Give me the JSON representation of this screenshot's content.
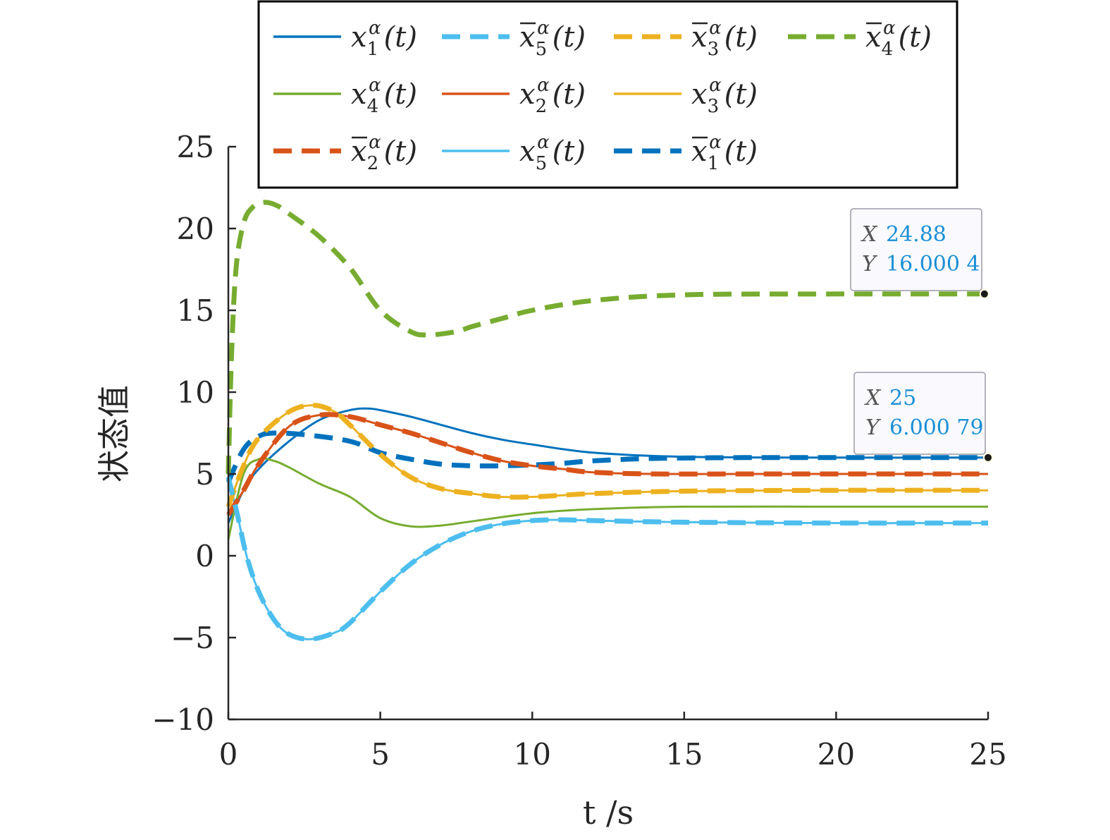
{
  "chart_data": {
    "type": "line",
    "title": "",
    "xlabel": "t /s",
    "ylabel": "状态值",
    "xlim": [
      0,
      25
    ],
    "ylim": [
      -10,
      25
    ],
    "xticks": [
      0,
      5,
      10,
      15,
      20,
      25
    ],
    "yticks": [
      -10,
      -5,
      0,
      5,
      10,
      15,
      20,
      25
    ],
    "xtick_labels": [
      "0",
      "5",
      "10",
      "15",
      "20",
      "25"
    ],
    "ytick_labels": [
      "−10",
      "−5",
      "0",
      "5",
      "10",
      "15",
      "20",
      "25"
    ],
    "grid": false,
    "legend_position": "top",
    "series": [
      {
        "name": "x1α(t)",
        "color": "#0072BD",
        "style": "solid",
        "x": [
          0,
          0.5,
          1,
          2,
          3,
          4,
          4.6,
          5,
          6,
          7,
          8,
          9,
          10,
          12,
          15,
          20,
          25
        ],
        "y": [
          2,
          4,
          5.3,
          7,
          8.3,
          8.9,
          9.0,
          8.9,
          8.5,
          8.0,
          7.5,
          7.1,
          6.8,
          6.3,
          6.05,
          6.0,
          6.0
        ]
      },
      {
        "name": "x2α(t)",
        "color": "#D95319",
        "style": "solid",
        "x": [
          0,
          0.5,
          1,
          2,
          3,
          4,
          5,
          6,
          7,
          8,
          9,
          10,
          11,
          12,
          14,
          17,
          20,
          25
        ],
        "y": [
          2.5,
          4,
          5.6,
          7.9,
          8.6,
          8.5,
          8.0,
          7.5,
          6.9,
          6.3,
          5.8,
          5.5,
          5.3,
          5.1,
          5.0,
          5.0,
          5.0,
          5.0
        ]
      },
      {
        "name": "x3α(t)",
        "color": "#EDB120",
        "style": "solid",
        "x": [
          0,
          0.5,
          1,
          2,
          2.8,
          3.5,
          4,
          5,
          6,
          7,
          8,
          9,
          10,
          11,
          12,
          15,
          20,
          25
        ],
        "y": [
          3,
          5.5,
          7.2,
          8.8,
          9.2,
          8.8,
          8.0,
          6.2,
          4.8,
          4.1,
          3.8,
          3.6,
          3.6,
          3.7,
          3.8,
          3.95,
          4.0,
          4.0
        ]
      },
      {
        "name": "x4α(t)",
        "color": "#77AC30",
        "style": "solid",
        "x": [
          0,
          0.5,
          1,
          1.5,
          2,
          3,
          4,
          5,
          6,
          7,
          8,
          10,
          12,
          15,
          20,
          25
        ],
        "y": [
          1,
          5,
          5.9,
          5.8,
          5.4,
          4.4,
          3.6,
          2.3,
          1.8,
          1.85,
          2.1,
          2.6,
          2.85,
          3.0,
          3.0,
          3.0
        ]
      },
      {
        "name": "x5α(t)",
        "color": "#4DBEEE",
        "style": "solid",
        "x": [
          0,
          0.3,
          0.6,
          1,
          1.5,
          2,
          2.7,
          3.5,
          4,
          5,
          6,
          7,
          8,
          9,
          10,
          11,
          12,
          15,
          20,
          25
        ],
        "y": [
          4.8,
          2.5,
          0,
          -2.2,
          -3.9,
          -4.8,
          -5.1,
          -4.7,
          -4.1,
          -2.2,
          -0.5,
          0.7,
          1.5,
          1.95,
          2.15,
          2.2,
          2.15,
          2.05,
          2.0,
          2.0
        ]
      },
      {
        "name": "x̄1α(t)",
        "color": "#0072BD",
        "style": "dashed",
        "x": [
          0,
          0.5,
          1,
          1.5,
          2.5,
          4,
          5,
          6,
          7,
          8,
          9,
          10,
          11,
          12,
          14,
          17,
          20,
          25
        ],
        "y": [
          4.5,
          6.5,
          7.3,
          7.5,
          7.4,
          7.0,
          6.3,
          5.9,
          5.6,
          5.5,
          5.5,
          5.55,
          5.65,
          5.8,
          5.95,
          6.0,
          6.0,
          6.0
        ]
      },
      {
        "name": "x̄2α(t)",
        "color": "#D95319",
        "style": "dashed",
        "x": [
          0,
          0.5,
          1,
          2,
          3,
          4,
          5,
          6,
          7,
          8,
          9,
          10,
          11,
          12,
          14,
          17,
          20,
          25
        ],
        "y": [
          2.5,
          4,
          5.6,
          7.9,
          8.6,
          8.5,
          8.0,
          7.5,
          6.9,
          6.3,
          5.8,
          5.5,
          5.3,
          5.1,
          5.0,
          5.0,
          5.0,
          5.0
        ]
      },
      {
        "name": "x̄3α(t)",
        "color": "#EDB120",
        "style": "dashed",
        "x": [
          0,
          0.5,
          1,
          2,
          2.8,
          3.5,
          4,
          5,
          6,
          7,
          8,
          9,
          10,
          11,
          12,
          15,
          20,
          25
        ],
        "y": [
          3,
          5.5,
          7.2,
          8.8,
          9.2,
          8.8,
          8.0,
          6.2,
          4.8,
          4.1,
          3.8,
          3.6,
          3.6,
          3.7,
          3.8,
          3.95,
          4.0,
          4.0
        ]
      },
      {
        "name": "x̄4α(t)",
        "color": "#77AC30",
        "style": "dashed",
        "x": [
          0,
          0.1,
          0.25,
          0.5,
          0.8,
          1.2,
          1.6,
          2,
          3,
          4,
          5,
          6,
          6.6,
          7.5,
          8,
          9,
          10,
          12,
          15,
          20,
          25
        ],
        "y": [
          5,
          12,
          17.5,
          20.3,
          21.3,
          21.6,
          21.4,
          20.9,
          19.5,
          17.6,
          15.0,
          13.7,
          13.5,
          13.7,
          14.0,
          14.5,
          15.0,
          15.6,
          15.95,
          16.0,
          16.0
        ]
      },
      {
        "name": "x̄5α(t)",
        "color": "#4DBEEE",
        "style": "dashed",
        "x": [
          0,
          0.3,
          0.6,
          1,
          1.5,
          2,
          2.7,
          3.5,
          4,
          5,
          6,
          7,
          8,
          9,
          10,
          11,
          12,
          15,
          20,
          25
        ],
        "y": [
          4.8,
          2.5,
          0,
          -2.2,
          -3.9,
          -4.8,
          -5.1,
          -4.7,
          -4.1,
          -2.2,
          -0.5,
          0.7,
          1.5,
          1.95,
          2.15,
          2.2,
          2.15,
          2.05,
          2.0,
          2.0
        ]
      }
    ],
    "legend": {
      "entries": [
        {
          "base": "x",
          "bar": false,
          "sub": "1",
          "sup": "α",
          "tail": "(t)",
          "color": "#0072BD",
          "style": "solid"
        },
        {
          "base": "x",
          "bar": false,
          "sub": "4",
          "sup": "α",
          "tail": "(t)",
          "color": "#77AC30",
          "style": "solid"
        },
        {
          "base": "x",
          "bar": true,
          "sub": "2",
          "sup": "α",
          "tail": "(t)",
          "color": "#D95319",
          "style": "dashed"
        },
        {
          "base": "x",
          "bar": true,
          "sub": "5",
          "sup": "α",
          "tail": "(t)",
          "color": "#4DBEEE",
          "style": "dashed"
        },
        {
          "base": "x",
          "bar": false,
          "sub": "2",
          "sup": "α",
          "tail": "(t)",
          "color": "#D95319",
          "style": "solid"
        },
        {
          "base": "x",
          "bar": false,
          "sub": "5",
          "sup": "α",
          "tail": "(t)",
          "color": "#4DBEEE",
          "style": "solid"
        },
        {
          "base": "x",
          "bar": true,
          "sub": "3",
          "sup": "α",
          "tail": "(t)",
          "color": "#EDB120",
          "style": "dashed"
        },
        {
          "base": "x",
          "bar": false,
          "sub": "3",
          "sup": "α",
          "tail": "(t)",
          "color": "#EDB120",
          "style": "solid"
        },
        {
          "base": "x",
          "bar": true,
          "sub": "1",
          "sup": "α",
          "tail": "(t)",
          "color": "#0072BD",
          "style": "dashed"
        },
        {
          "base": "x",
          "bar": true,
          "sub": "4",
          "sup": "α",
          "tail": "(t)",
          "color": "#77AC30",
          "style": "dashed"
        }
      ]
    },
    "datatips": [
      {
        "x_label": "X",
        "x_text": "24.88",
        "y_label": "Y",
        "y_text": "16.000 4",
        "x": 24.88,
        "y": 16.0004
      },
      {
        "x_label": "X",
        "x_text": "25",
        "y_label": "Y",
        "y_text": "6.000 79",
        "x": 25,
        "y": 6.00079
      }
    ]
  }
}
